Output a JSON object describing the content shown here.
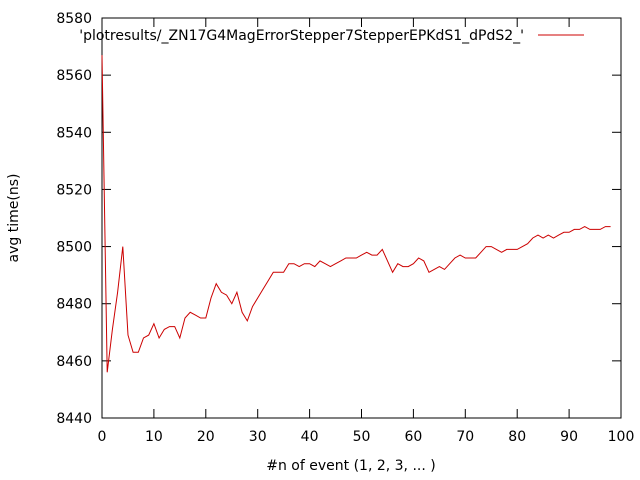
{
  "chart_data": {
    "type": "line",
    "title": "",
    "xlabel": "#n of event (1, 2, 3, ... )",
    "ylabel": "avg time(ns)",
    "xlim": [
      0,
      100
    ],
    "ylim": [
      8440,
      8580
    ],
    "xticks": [
      0,
      10,
      20,
      30,
      40,
      50,
      60,
      70,
      80,
      90,
      100
    ],
    "yticks": [
      8440,
      8460,
      8480,
      8500,
      8520,
      8540,
      8560,
      8580
    ],
    "grid": false,
    "legend_position": "top-right",
    "series": [
      {
        "name": "'plotresults/_ZN17G4MagErrorStepper7StepperEPKdS1_dPdS2_'",
        "color": "#cc0000",
        "x": [
          0,
          1,
          2,
          3,
          4,
          5,
          6,
          7,
          8,
          9,
          10,
          11,
          12,
          13,
          14,
          15,
          16,
          17,
          18,
          19,
          20,
          21,
          22,
          23,
          24,
          25,
          26,
          27,
          28,
          29,
          30,
          31,
          32,
          33,
          34,
          35,
          36,
          37,
          38,
          39,
          40,
          41,
          42,
          43,
          44,
          45,
          46,
          47,
          48,
          49,
          50,
          51,
          52,
          53,
          54,
          55,
          56,
          57,
          58,
          59,
          60,
          61,
          62,
          63,
          64,
          65,
          66,
          67,
          68,
          69,
          70,
          71,
          72,
          73,
          74,
          75,
          76,
          77,
          78,
          79,
          80,
          81,
          82,
          83,
          84,
          85,
          86,
          87,
          88,
          89,
          90,
          91,
          92,
          93,
          94,
          95,
          96,
          97,
          98
        ],
        "y": [
          8567,
          8456,
          8471,
          8484,
          8500,
          8469,
          8463,
          8463,
          8468,
          8469,
          8473,
          8468,
          8471,
          8472,
          8472,
          8468,
          8475,
          8477,
          8476,
          8475,
          8475,
          8482,
          8487,
          8484,
          8483,
          8480,
          8484,
          8477,
          8474,
          8479,
          8482,
          8485,
          8488,
          8491,
          8491,
          8491,
          8494,
          8494,
          8493,
          8494,
          8494,
          8493,
          8495,
          8494,
          8493,
          8494,
          8495,
          8496,
          8496,
          8496,
          8497,
          8498,
          8497,
          8497,
          8499,
          8495,
          8491,
          8494,
          8493,
          8493,
          8494,
          8496,
          8495,
          8491,
          8492,
          8493,
          8492,
          8494,
          8496,
          8497,
          8496,
          8496,
          8496,
          8498,
          8500,
          8500,
          8499,
          8498,
          8499,
          8499,
          8499,
          8500,
          8501,
          8503,
          8504,
          8503,
          8504,
          8503,
          8504,
          8505,
          8505,
          8506,
          8506,
          8507,
          8506,
          8506,
          8506,
          8507,
          8507
        ]
      }
    ]
  }
}
